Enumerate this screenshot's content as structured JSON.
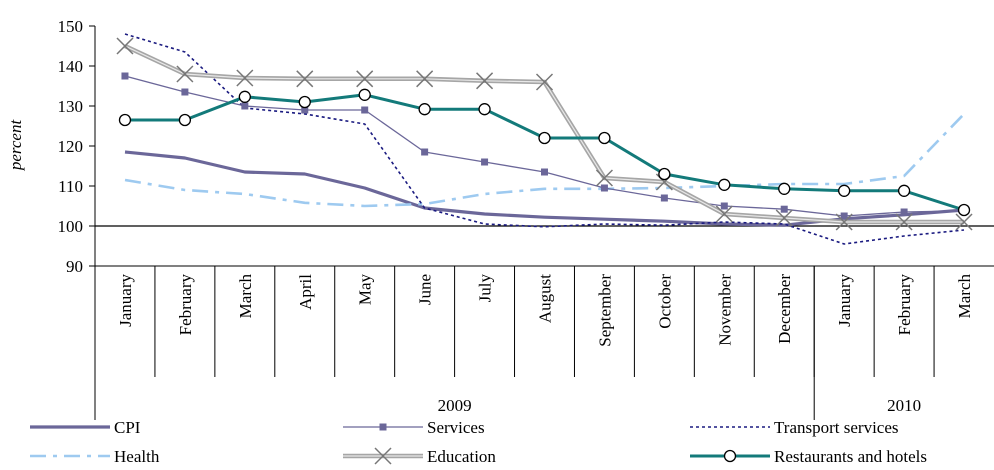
{
  "chart_data": {
    "type": "line",
    "ylabel": "percent",
    "ylim": [
      90,
      150
    ],
    "yticks": [
      90,
      100,
      110,
      120,
      130,
      140,
      150
    ],
    "reference_line": 100,
    "categories": [
      "January",
      "February",
      "March",
      "April",
      "May",
      "June",
      "July",
      "August",
      "September",
      "October",
      "November",
      "December",
      "January",
      "February",
      "March"
    ],
    "year_groups": [
      {
        "label": "2009",
        "count": 12
      },
      {
        "label": "2010",
        "count": 3
      }
    ],
    "legend_position": "bottom",
    "series": [
      {
        "name": "CPI",
        "style": "thick-solid",
        "color": "#6b6799",
        "values": [
          118.5,
          117,
          113.5,
          113,
          109.5,
          104.5,
          103,
          102.2,
          101.7,
          101.2,
          100.5,
          100.2,
          101.8,
          102.8,
          104
        ]
      },
      {
        "name": "Services",
        "style": "thin-square",
        "color": "#6b6799",
        "values": [
          137.5,
          133.5,
          130,
          129,
          129,
          118.5,
          116,
          113.5,
          109.5,
          107,
          105,
          104.2,
          102.5,
          103.5,
          103.8
        ]
      },
      {
        "name": "Transport services",
        "style": "dotted",
        "color": "#1a1a80",
        "values": [
          148,
          143.5,
          129.5,
          128,
          125.5,
          104.5,
          100.5,
          99.8,
          100.5,
          100.2,
          101,
          100.5,
          95.5,
          97.5,
          99
        ]
      },
      {
        "name": "Health",
        "style": "dash-dot",
        "color": "#9ecaf0",
        "values": [
          111.5,
          109,
          108,
          105.8,
          105,
          105.5,
          108,
          109.3,
          109.3,
          109.5,
          110,
          110.5,
          110.5,
          112.5,
          128
        ]
      },
      {
        "name": "Education",
        "style": "gray-x",
        "color": "#a6a6a6",
        "values": [
          145,
          138,
          137,
          136.8,
          136.8,
          136.8,
          136.3,
          136,
          112,
          111,
          103,
          102,
          101,
          101,
          101
        ]
      },
      {
        "name": "Restaurants and hotels",
        "style": "teal-circle",
        "color": "#137a7a",
        "values": [
          126.5,
          126.5,
          132.3,
          131,
          132.8,
          129.2,
          129.2,
          122,
          122,
          113,
          110.3,
          109.3,
          108.8,
          108.8,
          104
        ]
      }
    ]
  }
}
